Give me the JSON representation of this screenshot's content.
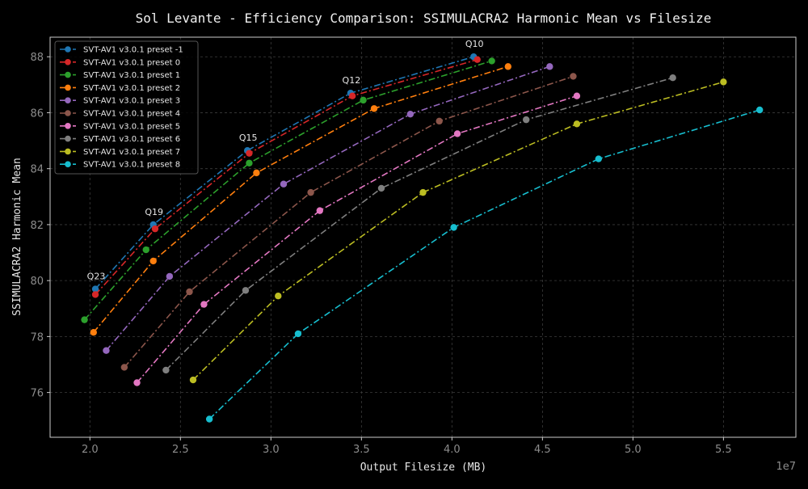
{
  "chart_data": {
    "type": "line",
    "title": "Sol Levante - Efficiency Comparison: SSIMULACRA2 Harmonic Mean vs Filesize",
    "xlabel": "Output Filesize (MB)",
    "ylabel": "SSIMULACRA2 Harmonic Mean",
    "x_offset_label": "1e7",
    "xlim": [
      1.78,
      5.9
    ],
    "ylim": [
      74.4,
      88.7
    ],
    "xticks": [
      2.0,
      2.5,
      3.0,
      3.5,
      4.0,
      4.5,
      5.0,
      5.5
    ],
    "xtick_labels": [
      "2.0",
      "2.5",
      "3.0",
      "3.5",
      "4.0",
      "4.5",
      "5.0",
      "5.5"
    ],
    "yticks": [
      76,
      78,
      80,
      82,
      84,
      86,
      88
    ],
    "ytick_labels": [
      "76",
      "78",
      "80",
      "82",
      "84",
      "86",
      "88"
    ],
    "grid": true,
    "legend_position": "upper-left",
    "line_style": "dash-dot",
    "series": [
      {
        "name": "SVT-AV1 v3.0.1 preset -1",
        "color": "#1f77b4",
        "x": [
          2.03,
          2.35,
          2.87,
          3.44,
          4.12
        ],
        "y": [
          79.7,
          82.0,
          84.65,
          86.7,
          88.0
        ]
      },
      {
        "name": "SVT-AV1 v3.0.1 preset 0",
        "color": "#d62728",
        "x": [
          2.03,
          2.36,
          2.88,
          3.45,
          4.14
        ],
        "y": [
          79.5,
          81.85,
          84.55,
          86.6,
          87.9
        ]
      },
      {
        "name": "SVT-AV1 v3.0.1 preset 1",
        "color": "#2ca02c",
        "x": [
          1.97,
          2.31,
          2.88,
          3.51,
          4.22
        ],
        "y": [
          78.6,
          81.1,
          84.2,
          86.45,
          87.85
        ]
      },
      {
        "name": "SVT-AV1 v3.0.1 preset 2",
        "color": "#ff7f0e",
        "x": [
          2.02,
          2.35,
          2.92,
          3.57,
          4.31
        ],
        "y": [
          78.15,
          80.7,
          83.85,
          86.15,
          87.65
        ]
      },
      {
        "name": "SVT-AV1 v3.0.1 preset 3",
        "color": "#9467bd",
        "x": [
          2.09,
          2.44,
          3.07,
          3.77,
          4.54
        ],
        "y": [
          77.5,
          80.15,
          83.45,
          85.95,
          87.65
        ]
      },
      {
        "name": "SVT-AV1 v3.0.1 preset 4",
        "color": "#8c564b",
        "x": [
          2.19,
          2.55,
          3.22,
          3.93,
          4.67
        ],
        "y": [
          76.9,
          79.6,
          83.15,
          85.7,
          87.3
        ]
      },
      {
        "name": "SVT-AV1 v3.0.1 preset 5",
        "color": "#e377c2",
        "x": [
          2.26,
          2.63,
          3.27,
          4.03,
          4.69
        ],
        "y": [
          76.35,
          79.15,
          82.5,
          85.25,
          86.6
        ]
      },
      {
        "name": "SVT-AV1 v3.0.1 preset 6",
        "color": "#7f7f7f",
        "x": [
          2.42,
          2.86,
          3.61,
          4.41,
          5.22
        ],
        "y": [
          76.8,
          79.65,
          83.3,
          85.75,
          87.25
        ]
      },
      {
        "name": "SVT-AV1 v3.0.1 preset 7",
        "color": "#bcbd22",
        "x": [
          2.57,
          3.04,
          3.84,
          4.69,
          5.5
        ],
        "y": [
          76.45,
          79.45,
          83.15,
          85.6,
          87.1
        ]
      },
      {
        "name": "SVT-AV1 v3.0.1 preset 8",
        "color": "#17becf",
        "x": [
          2.66,
          3.15,
          4.01,
          4.81,
          5.7
        ],
        "y": [
          75.05,
          78.1,
          81.9,
          84.35,
          86.1
        ]
      }
    ],
    "annotations": [
      {
        "text": "Q23",
        "x": 2.03,
        "y": 79.7
      },
      {
        "text": "Q19",
        "x": 2.35,
        "y": 82.0
      },
      {
        "text": "Q15",
        "x": 2.87,
        "y": 84.65
      },
      {
        "text": "Q12",
        "x": 3.44,
        "y": 86.7
      },
      {
        "text": "Q10",
        "x": 4.12,
        "y": 88.0
      }
    ]
  }
}
